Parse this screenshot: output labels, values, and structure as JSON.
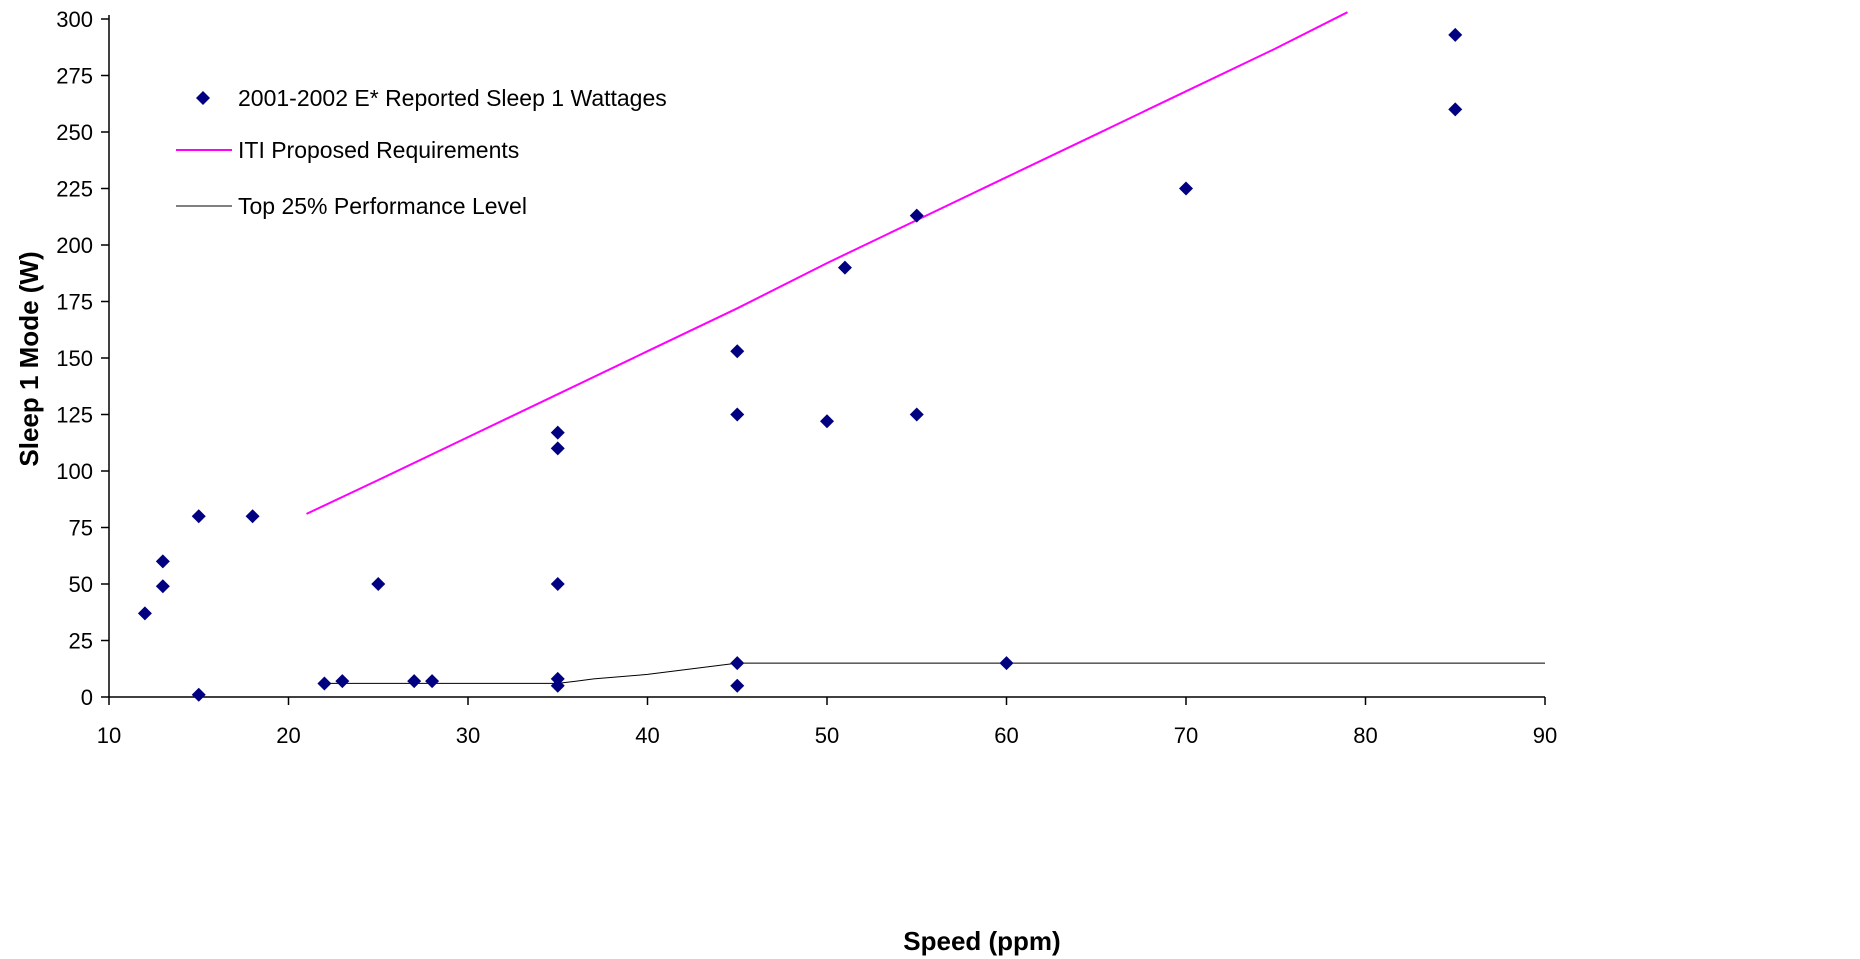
{
  "colors": {
    "scatter": "#000080",
    "iti_line": "#ff00ff",
    "top25_line": "#000000",
    "axis": "#000000"
  },
  "chart_data": {
    "type": "scatter",
    "title": "",
    "xlabel": "Speed (ppm)",
    "ylabel": "Sleep 1 Mode (W)",
    "xlim": [
      10,
      90
    ],
    "ylim": [
      0,
      300
    ],
    "xticks": [
      10,
      20,
      30,
      40,
      50,
      60,
      70,
      80,
      90
    ],
    "yticks": [
      0,
      25,
      50,
      75,
      100,
      125,
      150,
      175,
      200,
      225,
      250,
      275,
      300
    ],
    "grid": false,
    "legend_position": "top-left",
    "series": [
      {
        "name": "2001-2002 E* Reported Sleep 1 Wattages",
        "kind": "scatter",
        "marker": "diamond",
        "points": [
          [
            12,
            37
          ],
          [
            13,
            60
          ],
          [
            13,
            49
          ],
          [
            15,
            80
          ],
          [
            15,
            1
          ],
          [
            18,
            80
          ],
          [
            22,
            6
          ],
          [
            23,
            7
          ],
          [
            25,
            50
          ],
          [
            27,
            7
          ],
          [
            28,
            7
          ],
          [
            35,
            117
          ],
          [
            35,
            110
          ],
          [
            35,
            50
          ],
          [
            35,
            8
          ],
          [
            35,
            5
          ],
          [
            45,
            153
          ],
          [
            45,
            125
          ],
          [
            45,
            15
          ],
          [
            45,
            5
          ],
          [
            50,
            122
          ],
          [
            51,
            190
          ],
          [
            55,
            213
          ],
          [
            55,
            125
          ],
          [
            60,
            15
          ],
          [
            70,
            225
          ],
          [
            85,
            293
          ],
          [
            85,
            260
          ]
        ]
      },
      {
        "name": "ITI Proposed Requirements",
        "kind": "line",
        "points": [
          [
            21,
            81
          ],
          [
            25,
            96
          ],
          [
            30,
            115
          ],
          [
            35,
            134
          ],
          [
            40,
            153
          ],
          [
            45,
            172
          ],
          [
            50,
            192
          ],
          [
            55,
            211
          ],
          [
            60,
            230
          ],
          [
            65,
            249
          ],
          [
            70,
            268
          ],
          [
            75,
            287
          ],
          [
            79,
            303
          ]
        ]
      },
      {
        "name": "Top 25% Performance Level",
        "kind": "line",
        "points": [
          [
            22,
            6
          ],
          [
            35,
            6
          ],
          [
            36,
            7
          ],
          [
            37,
            8
          ],
          [
            40,
            10
          ],
          [
            43,
            13
          ],
          [
            44,
            14
          ],
          [
            45,
            15
          ],
          [
            55,
            15
          ],
          [
            60,
            15
          ],
          [
            70,
            15
          ],
          [
            80,
            15
          ],
          [
            90,
            15
          ]
        ]
      }
    ]
  }
}
